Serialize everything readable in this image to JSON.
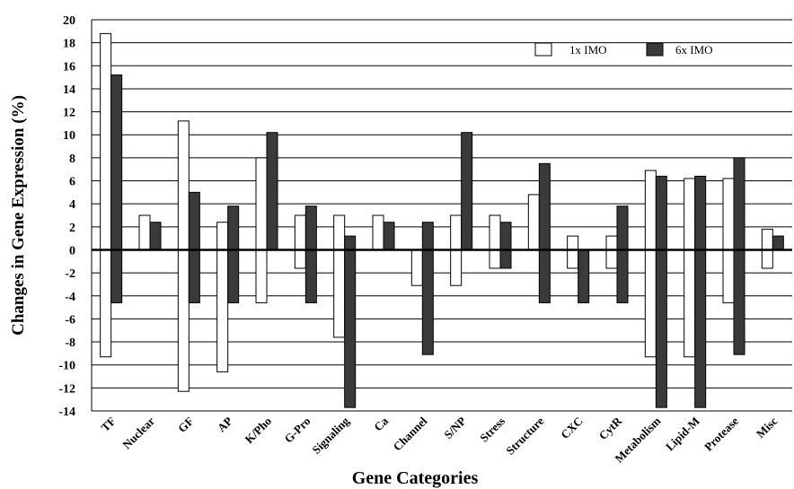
{
  "chart_data": {
    "type": "bar",
    "xlabel": "Gene Categories",
    "ylabel": "Changes in Gene Expression (%)",
    "ylim": [
      -14,
      20
    ],
    "yticks": [
      20,
      18,
      16,
      14,
      12,
      10,
      8,
      6,
      4,
      2,
      0,
      -2,
      -4,
      -6,
      -8,
      -10,
      -12,
      -14
    ],
    "grid": true,
    "legend_position": "top-right",
    "categories": [
      "TF",
      "Nuclear",
      "GF",
      "AP",
      "K/Pho",
      "G-Pro",
      "Signaling",
      "Ca",
      "Channel",
      "S/NP",
      "Stress",
      "Structure",
      "CXC",
      "CytR",
      "Metabolism",
      "Lipid-M",
      "Protease",
      "Misc"
    ],
    "series": [
      {
        "name": "1x IMO",
        "color": "#ffffff",
        "values": [
          [
            -9.3,
            18.8
          ],
          [
            0,
            3.0
          ],
          [
            -12.3,
            11.2
          ],
          [
            -10.6,
            2.4
          ],
          [
            -4.6,
            8.0
          ],
          [
            -1.6,
            3.0
          ],
          [
            -7.6,
            3.0
          ],
          [
            0,
            3.0
          ],
          [
            -3.1,
            0
          ],
          [
            -3.1,
            3.0
          ],
          [
            -1.6,
            3.0
          ],
          [
            0,
            4.8
          ],
          [
            -1.6,
            1.2
          ],
          [
            -1.6,
            1.2
          ],
          [
            -9.3,
            6.9
          ],
          [
            -9.3,
            6.2
          ],
          [
            -4.6,
            6.2
          ],
          [
            -1.6,
            1.8
          ]
        ]
      },
      {
        "name": "6x IMO",
        "color": "#3a3a3a",
        "values": [
          [
            -4.6,
            15.2
          ],
          [
            0,
            2.4
          ],
          [
            -4.6,
            5.0
          ],
          [
            -4.6,
            3.8
          ],
          [
            0,
            10.2
          ],
          [
            -4.6,
            3.8
          ],
          [
            -13.7,
            1.2
          ],
          [
            0,
            2.4
          ],
          [
            -9.1,
            2.4
          ],
          [
            0,
            10.2
          ],
          [
            -1.6,
            2.4
          ],
          [
            -4.6,
            7.5
          ],
          [
            -4.6,
            0
          ],
          [
            -4.6,
            3.8
          ],
          [
            -13.7,
            6.4
          ],
          [
            -13.7,
            6.4
          ],
          [
            -9.1,
            8.0
          ],
          [
            0,
            1.2
          ]
        ]
      }
    ]
  }
}
